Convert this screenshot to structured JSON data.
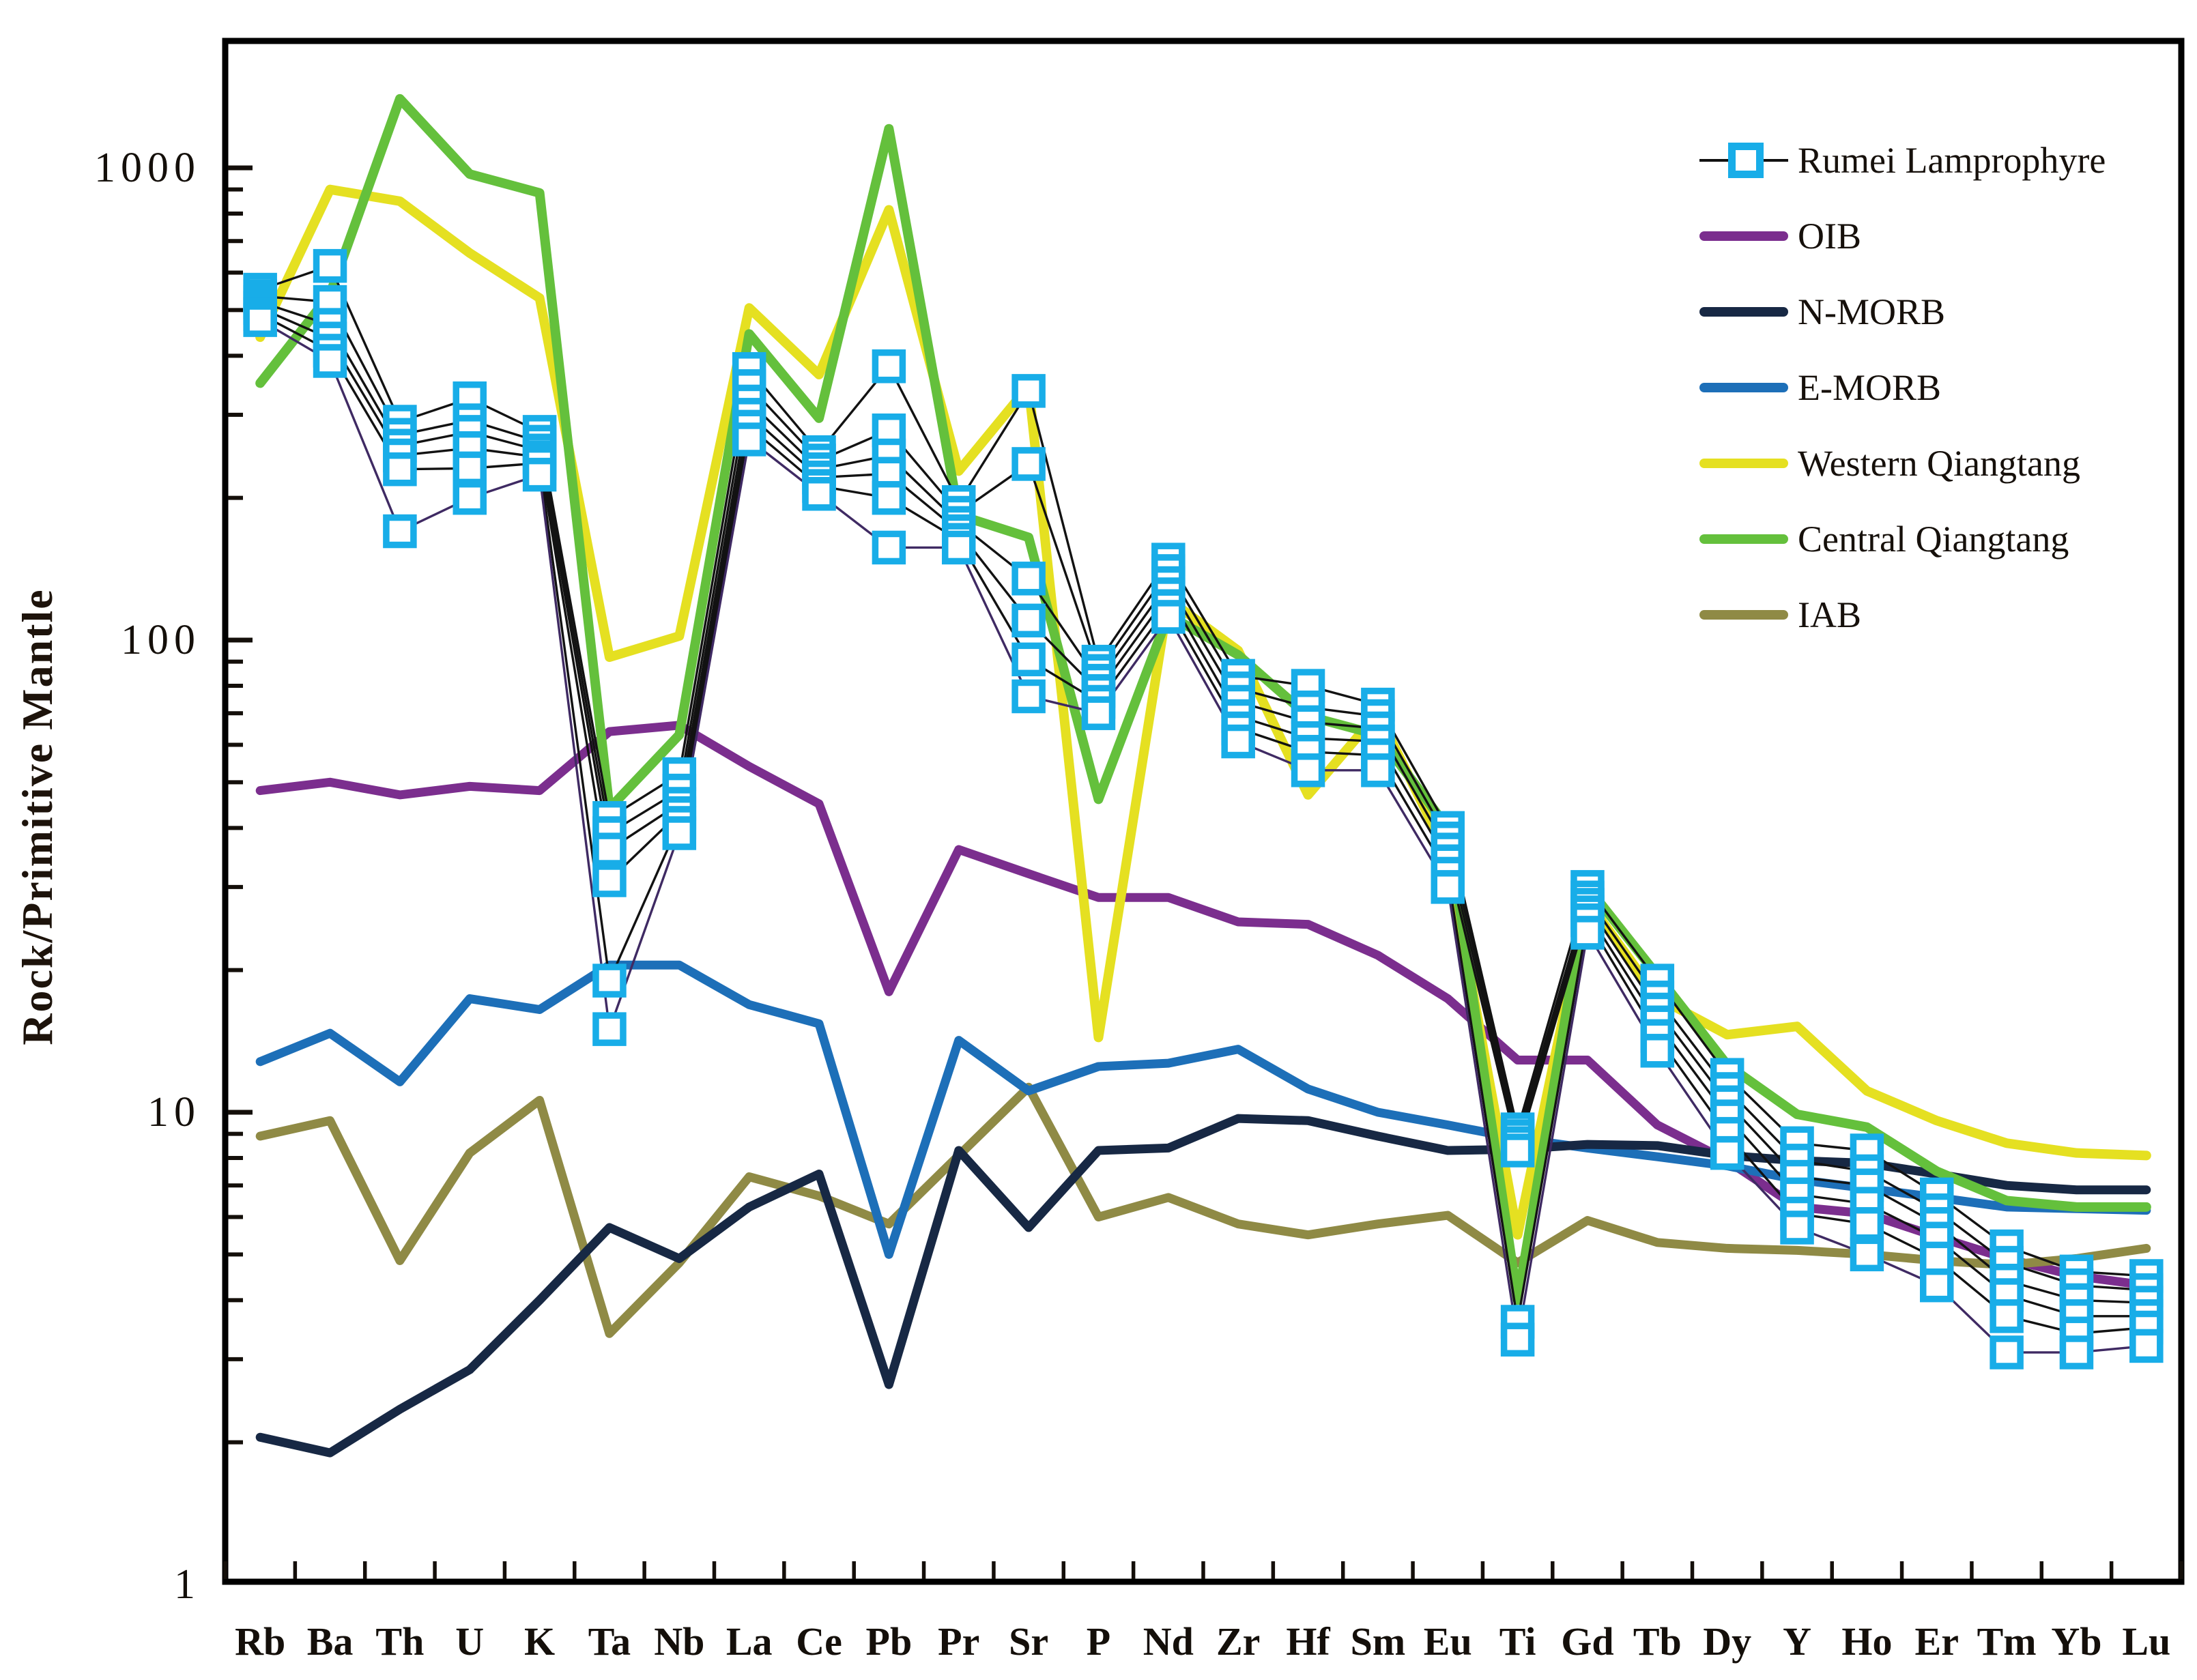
{
  "figure": {
    "kind": "trace-element spider diagram (log scale)",
    "background": "#ffffff",
    "axis_color": "#000000",
    "text_color": "#16100b"
  },
  "axes": {
    "y_label": "Rock/Primitive Mantle",
    "y_major_ticks": [
      {
        "value": 1,
        "label": "1"
      },
      {
        "value": 10,
        "label": "10"
      },
      {
        "value": 100,
        "label": "100"
      },
      {
        "value": 1000,
        "label": "1000"
      }
    ],
    "y_range": [
      1,
      1850
    ],
    "x_tick_count": 29
  },
  "legend": {
    "items": [
      {
        "label": "Rumei Lamprophyre",
        "type": "marker",
        "color": "#18ade8"
      },
      {
        "label": "OIB",
        "type": "line",
        "color": "#7b2e8e"
      },
      {
        "label": "N-MORB",
        "type": "line",
        "color": "#172844"
      },
      {
        "label": "E-MORB",
        "type": "line",
        "color": "#1d6fb8"
      },
      {
        "label": "Western Qiangtang",
        "type": "line",
        "color": "#e5e021"
      },
      {
        "label": "Central Qiangtang",
        "type": "line",
        "color": "#64c03c"
      },
      {
        "label": "IAB",
        "type": "line",
        "color": "#8f8a45"
      }
    ]
  },
  "chart_data": {
    "type": "line",
    "log_y": true,
    "title": "",
    "xlabel": "",
    "ylabel": "Rock/Primitive Mantle",
    "ylim": [
      1,
      1850
    ],
    "grid": false,
    "legend_position": "upper right",
    "categories": [
      "Rb",
      "Ba",
      "Th",
      "U",
      "K",
      "Ta",
      "Nb",
      "La",
      "Ce",
      "Pb",
      "Pr",
      "Sr",
      "P",
      "Nd",
      "Zr",
      "Hf",
      "Sm",
      "Eu",
      "Ti",
      "Gd",
      "Tb",
      "Dy",
      "Y",
      "Ho",
      "Er",
      "Tm",
      "Yb",
      "Lu"
    ],
    "reference_series": [
      {
        "name": "OIB",
        "color": "#7b2e8e",
        "width": 13,
        "values": [
          48,
          50,
          47,
          49,
          48,
          64,
          66,
          54,
          45,
          18,
          36,
          32,
          28.5,
          28.5,
          25.3,
          25,
          21.5,
          17.4,
          12.9,
          12.9,
          9.4,
          7.9,
          6.3,
          6.1,
          5.45,
          4.9,
          4.5,
          4.3
        ]
      },
      {
        "name": "IAB",
        "color": "#8f8a45",
        "width": 13,
        "values": [
          8.9,
          9.6,
          4.85,
          8.2,
          10.6,
          3.4,
          4.8,
          7.3,
          6.65,
          5.8,
          8.1,
          11.3,
          6.0,
          6.6,
          5.8,
          5.5,
          5.8,
          6.05,
          4.8,
          5.9,
          5.3,
          5.15,
          5.1,
          5.0,
          4.85,
          4.75,
          4.9,
          5.15
        ]
      },
      {
        "name": "E-MORB",
        "color": "#1d6fb8",
        "width": 13,
        "values": [
          12.8,
          14.7,
          11.6,
          17.4,
          16.5,
          20.5,
          20.5,
          16.9,
          15.4,
          5.0,
          14.2,
          11.1,
          12.5,
          12.7,
          13.6,
          11.2,
          10.0,
          9.4,
          8.8,
          8.4,
          8.05,
          7.7,
          7.2,
          6.9,
          6.6,
          6.3,
          6.25,
          6.2
        ]
      },
      {
        "name": "N-MORB",
        "color": "#172844",
        "width": 13,
        "values": [
          2.05,
          1.9,
          2.35,
          2.85,
          4.0,
          5.7,
          4.9,
          6.3,
          7.4,
          2.65,
          8.3,
          5.7,
          8.3,
          8.4,
          9.7,
          9.6,
          8.9,
          8.3,
          8.35,
          8.55,
          8.5,
          8.1,
          7.9,
          7.8,
          7.4,
          7.0,
          6.85,
          6.85
        ]
      },
      {
        "name": "Western Qiangtang",
        "color": "#e5e021",
        "width": 14,
        "values": [
          438,
          900,
          850,
          660,
          530,
          92,
          102,
          505,
          365,
          815,
          228,
          345,
          14.4,
          122,
          95,
          47,
          70,
          35,
          5.5,
          28,
          17.5,
          14.6,
          15.2,
          11.1,
          9.6,
          8.6,
          8.2,
          8.1
        ]
      },
      {
        "name": "Central Qiangtang",
        "color": "#64c03c",
        "width": 14,
        "values": [
          350,
          540,
          1400,
          970,
          885,
          44,
          63,
          445,
          295,
          1210,
          184,
          165,
          46,
          113,
          93,
          69,
          63,
          40,
          4.0,
          30,
          19.5,
          12.6,
          9.9,
          9.3,
          7.5,
          6.5,
          6.3,
          6.3
        ]
      }
    ],
    "samples": {
      "name": "Rumei Lamprophyre",
      "marker_color": "#18ade8",
      "line_colors": [
        "#121212",
        "#121212",
        "#121212",
        "#121212",
        "#121212",
        "#3f2a63"
      ],
      "series": [
        [
          552,
          620,
          290,
          325,
          276,
          42,
          52,
          375,
          250,
          380,
          196,
          337,
          90,
          148,
          84,
          80,
          73,
          40,
          9.2,
          30,
          19,
          12,
          8.6,
          8.3,
          6.7,
          5.2,
          4.6,
          4.5
        ],
        [
          535,
          520,
          272,
          292,
          263,
          39,
          48,
          345,
          240,
          278,
          186,
          236,
          86,
          140,
          79,
          72,
          69,
          38,
          8.9,
          28.5,
          17.5,
          11.2,
          7.9,
          7.5,
          6.2,
          4.8,
          4.3,
          4.2
        ],
        [
          520,
          465,
          258,
          276,
          252,
          36,
          45,
          320,
          230,
          246,
          177,
          135,
          82,
          132,
          74,
          67,
          65,
          36,
          8.6,
          27.5,
          16.5,
          10.5,
          7.3,
          7.0,
          5.8,
          4.4,
          4.0,
          3.95
        ],
        [
          505,
          435,
          246,
          255,
          244,
          31,
          43,
          300,
          221,
          225,
          170,
          110,
          78,
          125,
          69,
          62,
          61,
          34,
          8.3,
          26.5,
          15.5,
          9.8,
          6.7,
          6.4,
          5.4,
          4.1,
          3.7,
          3.7
        ],
        [
          490,
          410,
          230,
          231,
          237,
          19,
          41,
          283,
          212,
          200,
          163,
          91,
          74,
          118,
          65,
          58,
          57,
          32,
          3.6,
          25.5,
          14.5,
          9.0,
          6.1,
          5.8,
          4.9,
          3.7,
          3.4,
          3.5
        ],
        [
          476,
          390,
          170,
          200,
          224,
          15,
          39,
          266,
          204,
          157,
          157,
          76,
          70,
          112,
          61,
          53,
          53,
          30,
          3.3,
          24,
          13.5,
          8.2,
          5.7,
          5.0,
          4.3,
          3.1,
          3.1,
          3.2
        ]
      ]
    }
  }
}
